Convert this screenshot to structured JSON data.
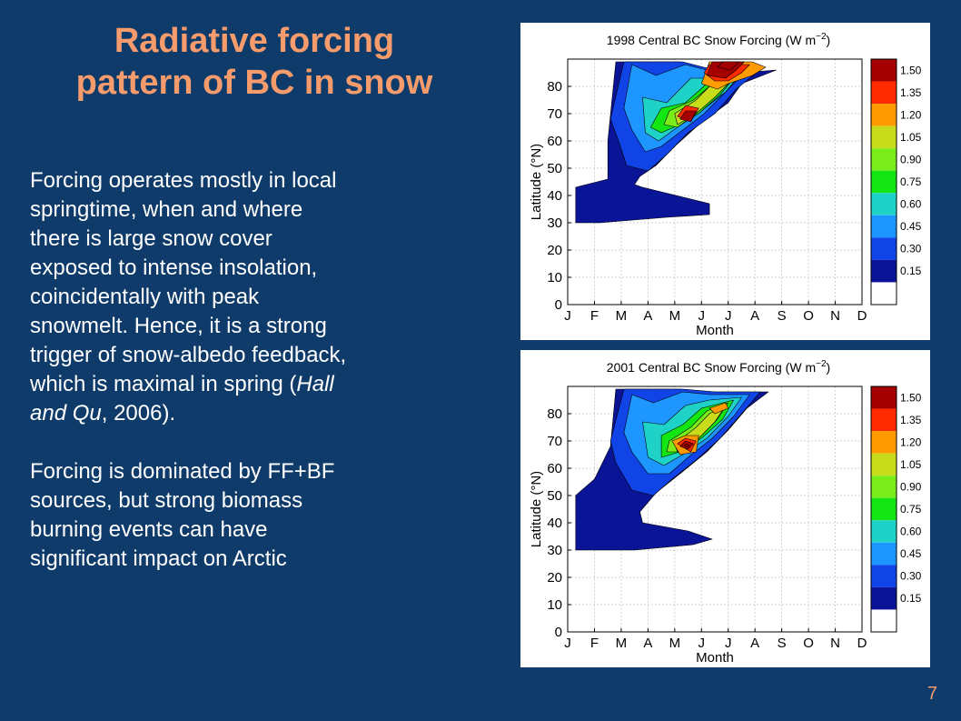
{
  "slide": {
    "title_lines": [
      "Radiative forcing",
      "pattern of BC in snow"
    ],
    "paragraph1": [
      "Forcing operates mostly in local",
      "springtime, when and where",
      "there is large snow cover",
      "exposed to intense insolation,",
      "coincidentally with peak",
      "snowmelt. Hence, it is a strong",
      "trigger of snow-albedo feedback,",
      "which is maximal in spring ("
    ],
    "citation_italic_1": "Hall",
    "citation_italic_2": "and Qu",
    "citation_rest": ", 2006).",
    "paragraph2": [
      "Forcing is dominated by FF+BF",
      "sources, but strong biomass",
      "burning events can have",
      "significant impact on Arctic"
    ],
    "page_number": "7"
  },
  "colors": {
    "background": "#0f3b6b",
    "title": "#f59b6c",
    "text": "#ffffff"
  },
  "chart_data": [
    {
      "type": "heatmap",
      "title": "1998 Central BC Snow Forcing (W m^-2)",
      "title_prefix": "1998 Central BC Snow Forcing (W m",
      "title_sup": "−2",
      "title_suffix": ")",
      "xlabel": "Month",
      "ylabel": "Latitude (°N)",
      "x_categories": [
        "J",
        "F",
        "M",
        "A",
        "M",
        "J",
        "J",
        "A",
        "S",
        "O",
        "N",
        "D"
      ],
      "y_ticks": [
        0,
        10,
        20,
        30,
        40,
        50,
        60,
        70,
        80
      ],
      "ylim": [
        0,
        90
      ],
      "colorbar_labels": [
        "1.50",
        "1.35",
        "1.20",
        "1.05",
        "0.90",
        "0.75",
        "0.60",
        "0.45",
        "0.30",
        "0.15"
      ],
      "colorbar_colors": [
        "#a50000",
        "#ff2a00",
        "#ff9a00",
        "#c8dc1c",
        "#7aec1a",
        "#14e614",
        "#1ed2c8",
        "#1e96ff",
        "#1044e6",
        "#0a1496",
        "#ffffff"
      ],
      "grid": true,
      "contours": [
        {
          "level": 0,
          "points": [
            [
              1.8,
              89
            ],
            [
              4.2,
              89
            ],
            [
              5.5,
              85
            ],
            [
              6.5,
              85
            ],
            [
              7.8,
              86
            ],
            [
              6.5,
              81
            ],
            [
              6,
              74
            ],
            [
              4.9,
              66
            ],
            [
              4,
              58
            ],
            [
              3.3,
              51
            ],
            [
              2.7,
              47
            ],
            [
              2.5,
              44
            ],
            [
              2.8,
              43
            ],
            [
              5.3,
              37
            ],
            [
              5.3,
              33
            ],
            [
              3.7,
              32
            ],
            [
              1.2,
              30
            ],
            [
              0.3,
              30
            ],
            [
              0.3,
              43
            ],
            [
              1.5,
              46
            ],
            [
              1.5,
              60
            ]
          ]
        },
        {
          "level": 1,
          "points": [
            [
              2.1,
              89
            ],
            [
              4.3,
              89
            ],
            [
              5.5,
              86
            ],
            [
              6.4,
              86
            ],
            [
              7.3,
              87
            ],
            [
              6.3,
              79
            ],
            [
              5.5,
              70
            ],
            [
              4.5,
              63
            ],
            [
              3.7,
              55
            ],
            [
              3,
              49
            ],
            [
              2.2,
              51
            ],
            [
              1.9,
              60
            ],
            [
              1.6,
              68
            ]
          ]
        },
        {
          "level": 2,
          "points": [
            [
              2.4,
              88
            ],
            [
              3.3,
              84
            ],
            [
              4.4,
              88
            ],
            [
              5.2,
              86
            ],
            [
              6.8,
              87
            ],
            [
              6,
              79
            ],
            [
              5.1,
              70
            ],
            [
              4.3,
              64
            ],
            [
              3.5,
              58
            ],
            [
              2.9,
              56
            ],
            [
              2.4,
              64
            ],
            [
              2.1,
              72
            ]
          ]
        },
        {
          "level": 3,
          "points": [
            [
              2.8,
              76
            ],
            [
              3.7,
              74
            ],
            [
              4.6,
              83
            ],
            [
              5.3,
              83
            ],
            [
              6.6,
              86
            ],
            [
              5.9,
              78
            ],
            [
              5,
              71
            ],
            [
              4.1,
              65
            ],
            [
              3.4,
              60
            ],
            [
              2.9,
              63
            ]
          ]
        },
        {
          "level": 4,
          "points": [
            [
              3.5,
              72
            ],
            [
              4.4,
              74
            ],
            [
              5.2,
              81
            ],
            [
              6.3,
              84
            ],
            [
              5.7,
              77
            ],
            [
              4.9,
              70
            ],
            [
              4.2,
              66
            ],
            [
              3.5,
              63
            ],
            [
              3.1,
              65
            ]
          ]
        },
        {
          "level": 5,
          "points": [
            [
              3.8,
              71
            ],
            [
              4.7,
              75
            ],
            [
              5.3,
              80
            ],
            [
              6.2,
              83
            ],
            [
              5.6,
              77
            ],
            [
              4.8,
              70
            ],
            [
              4.1,
              65
            ],
            [
              3.6,
              66
            ]
          ]
        },
        {
          "level": 6,
          "points": [
            [
              4.0,
              70
            ],
            [
              4.8,
              75
            ],
            [
              5.3,
              80
            ],
            [
              6.1,
              82
            ],
            [
              5.5,
              76
            ],
            [
              4.8,
              70
            ],
            [
              4.1,
              66
            ]
          ]
        },
        {
          "level": 7,
          "points": [
            [
              5.0,
              81
            ],
            [
              5.3,
              89
            ],
            [
              6.9,
              89
            ],
            [
              7.4,
              87
            ],
            [
              6.9,
              84
            ],
            [
              6.0,
              81
            ],
            [
              5.6,
              79
            ]
          ]
        },
        {
          "level": 8,
          "points": [
            [
              4.1,
              69
            ],
            [
              4.4,
              73
            ],
            [
              4.9,
              72
            ],
            [
              4.6,
              67
            ]
          ]
        },
        {
          "level": 8,
          "points": [
            [
              5.1,
              85
            ],
            [
              5.3,
              88
            ],
            [
              6.8,
              88
            ],
            [
              6.5,
              85
            ],
            [
              6.0,
              82
            ],
            [
              5.5,
              82
            ]
          ]
        },
        {
          "level": 9,
          "points": [
            [
              4.2,
              68
            ],
            [
              4.4,
              71
            ],
            [
              4.8,
              71
            ],
            [
              4.6,
              67
            ]
          ]
        },
        {
          "level": 9,
          "points": [
            [
              5.2,
              84
            ],
            [
              5.4,
              89
            ],
            [
              6.6,
              89
            ],
            [
              6.3,
              86
            ],
            [
              5.9,
              83
            ]
          ]
        },
        {
          "level": 10,
          "points": [
            [
              5.6,
              87
            ],
            [
              5.8,
              89
            ],
            [
              6.4,
              89
            ],
            [
              6.1,
              86
            ]
          ]
        }
      ]
    },
    {
      "type": "heatmap",
      "title": "2001 Central BC Snow Forcing (W m^-2)",
      "title_prefix": "2001 Central BC Snow Forcing (W m",
      "title_sup": "−2",
      "title_suffix": ")",
      "xlabel": "Month",
      "ylabel": "Latitude (°N)",
      "x_categories": [
        "J",
        "F",
        "M",
        "A",
        "M",
        "J",
        "J",
        "A",
        "S",
        "O",
        "N",
        "D"
      ],
      "y_ticks": [
        0,
        10,
        20,
        30,
        40,
        50,
        60,
        70,
        80
      ],
      "ylim": [
        0,
        90
      ],
      "colorbar_labels": [
        "1.50",
        "1.35",
        "1.20",
        "1.05",
        "0.90",
        "0.75",
        "0.60",
        "0.45",
        "0.30",
        "0.15"
      ],
      "colorbar_colors": [
        "#a50000",
        "#ff2a00",
        "#ff9a00",
        "#c8dc1c",
        "#7aec1a",
        "#14e614",
        "#1ed2c8",
        "#1e96ff",
        "#1044e6",
        "#0a1496",
        "#ffffff"
      ],
      "grid": true,
      "contours": [
        {
          "level": 0,
          "points": [
            [
              1.8,
              89
            ],
            [
              4.2,
              89
            ],
            [
              5.5,
              88
            ],
            [
              7.5,
              88
            ],
            [
              6.7,
              82
            ],
            [
              6,
              74
            ],
            [
              5.2,
              66
            ],
            [
              4.2,
              58
            ],
            [
              3.3,
              51
            ],
            [
              2.7,
              44
            ],
            [
              2.8,
              40
            ],
            [
              4.5,
              37
            ],
            [
              5.4,
              34
            ],
            [
              4.7,
              32
            ],
            [
              2.5,
              30
            ],
            [
              0.3,
              30
            ],
            [
              0.3,
              50
            ],
            [
              1.0,
              56
            ],
            [
              1.6,
              68
            ]
          ]
        },
        {
          "level": 1,
          "points": [
            [
              2.1,
              89
            ],
            [
              4.3,
              89
            ],
            [
              5.5,
              88
            ],
            [
              7.2,
              88
            ],
            [
              6.5,
              80
            ],
            [
              5.7,
              71
            ],
            [
              4.8,
              63
            ],
            [
              3.9,
              56
            ],
            [
              3.2,
              50
            ],
            [
              2.4,
              52
            ],
            [
              1.8,
              62
            ],
            [
              1.6,
              70
            ]
          ]
        },
        {
          "level": 2,
          "points": [
            [
              2.4,
              87
            ],
            [
              3.2,
              84
            ],
            [
              4.3,
              88
            ],
            [
              5.3,
              87
            ],
            [
              6.8,
              87
            ],
            [
              6.2,
              79
            ],
            [
              5.4,
              71
            ],
            [
              4.5,
              64
            ],
            [
              3.8,
              58
            ],
            [
              3.0,
              58
            ],
            [
              2.4,
              66
            ],
            [
              2.1,
              73
            ]
          ]
        },
        {
          "level": 3,
          "points": [
            [
              2.8,
              77
            ],
            [
              3.6,
              76
            ],
            [
              4.4,
              83
            ],
            [
              5.3,
              85
            ],
            [
              6.5,
              86
            ],
            [
              6.0,
              79
            ],
            [
              5.2,
              71
            ],
            [
              4.3,
              65
            ],
            [
              3.6,
              61
            ],
            [
              3.0,
              64
            ]
          ]
        },
        {
          "level": 4,
          "points": [
            [
              3.5,
              72
            ],
            [
              4.3,
              76
            ],
            [
              5.0,
              82
            ],
            [
              6.2,
              85
            ],
            [
              5.8,
              78
            ],
            [
              5.0,
              71
            ],
            [
              4.2,
              66
            ],
            [
              3.5,
              64
            ]
          ]
        },
        {
          "level": 5,
          "points": [
            [
              3.8,
              70
            ],
            [
              4.6,
              75
            ],
            [
              5.2,
              81
            ],
            [
              6.0,
              84
            ],
            [
              5.6,
              78
            ],
            [
              4.9,
              71
            ],
            [
              4.2,
              66
            ],
            [
              3.7,
              66
            ]
          ]
        },
        {
          "level": 6,
          "points": [
            [
              4.0,
              69
            ],
            [
              4.8,
              75
            ],
            [
              5.3,
              80
            ],
            [
              5.9,
              83
            ],
            [
              5.5,
              77
            ],
            [
              4.8,
              70
            ],
            [
              4.1,
              66
            ]
          ]
        },
        {
          "level": 7,
          "points": [
            [
              3.9,
              70
            ],
            [
              4.4,
              72
            ],
            [
              4.9,
              72
            ],
            [
              4.8,
              66
            ],
            [
              4.2,
              65
            ]
          ]
        },
        {
          "level": 7,
          "points": [
            [
              5.3,
              82
            ],
            [
              5.9,
              84
            ],
            [
              6.0,
              82
            ],
            [
              5.5,
              80
            ]
          ]
        },
        {
          "level": 8,
          "points": [
            [
              4.1,
              69
            ],
            [
              4.4,
              71
            ],
            [
              4.8,
              70
            ],
            [
              4.6,
              66
            ]
          ]
        },
        {
          "level": 9,
          "points": [
            [
              4.2,
              68
            ],
            [
              4.4,
              70
            ],
            [
              4.7,
              69
            ],
            [
              4.5,
              67
            ]
          ]
        },
        {
          "level": 10,
          "points": [
            [
              4.35,
              68.3
            ],
            [
              4.45,
              68.8
            ],
            [
              4.55,
              68.2
            ],
            [
              4.45,
              67.8
            ]
          ]
        }
      ]
    }
  ]
}
